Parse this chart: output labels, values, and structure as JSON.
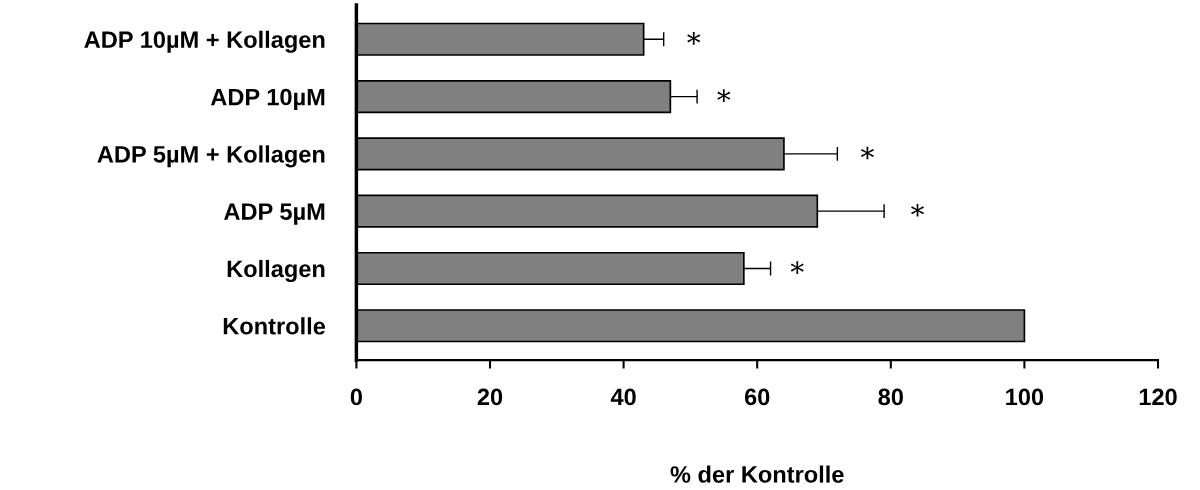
{
  "chart_data": {
    "type": "bar",
    "orientation": "horizontal",
    "xlabel": "% der Kontrolle",
    "categories": [
      "ADP 10µM + Kollagen",
      "ADP 10µM",
      "ADP 5µM + Kollagen",
      "ADP 5µM",
      "Kollagen",
      "Kontrolle"
    ],
    "values": [
      43,
      47,
      64,
      69,
      58,
      100
    ],
    "errors": [
      3,
      4,
      8,
      10,
      4,
      null
    ],
    "color": "#808080",
    "xlim": [
      0,
      120
    ],
    "xticks": [
      0,
      20,
      40,
      60,
      80,
      100,
      120
    ],
    "grid": false,
    "legend": false,
    "annotations": [
      "*",
      "*",
      "*",
      "*",
      "*"
    ]
  }
}
